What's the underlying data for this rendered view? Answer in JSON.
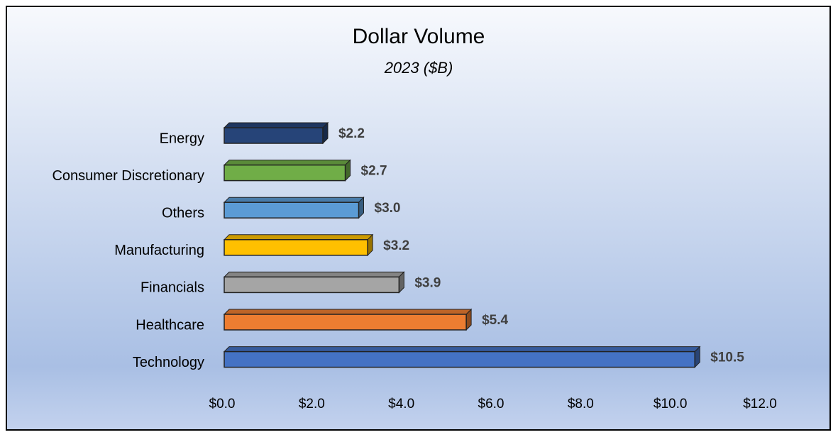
{
  "chart_data": {
    "type": "bar",
    "orientation": "horizontal",
    "title": "Dollar Volume",
    "subtitle": "2023 ($B)",
    "categories": [
      "Energy",
      "Consumer Discretionary",
      "Others",
      "Manufacturing",
      "Financials",
      "Healthcare",
      "Technology"
    ],
    "values": [
      2.2,
      2.7,
      3.0,
      3.2,
      3.9,
      5.4,
      10.5
    ],
    "value_labels": [
      "$2.2",
      "$2.7",
      "$3.0",
      "$3.2",
      "$3.9",
      "$5.4",
      "$10.5"
    ],
    "colors": [
      "#264478",
      "#70ad47",
      "#5b9bd5",
      "#ffc000",
      "#a5a5a5",
      "#ed7d31",
      "#4472c4"
    ],
    "xlim": [
      0,
      12
    ],
    "xticks": [
      {
        "value": 0,
        "label": "$0.0"
      },
      {
        "value": 2,
        "label": "$2.0"
      },
      {
        "value": 4,
        "label": "$4.0"
      },
      {
        "value": 6,
        "label": "$6.0"
      },
      {
        "value": 8,
        "label": "$8.0"
      },
      {
        "value": 10,
        "label": "$10.0"
      },
      {
        "value": 12,
        "label": "$12.0"
      }
    ],
    "grid": false
  }
}
